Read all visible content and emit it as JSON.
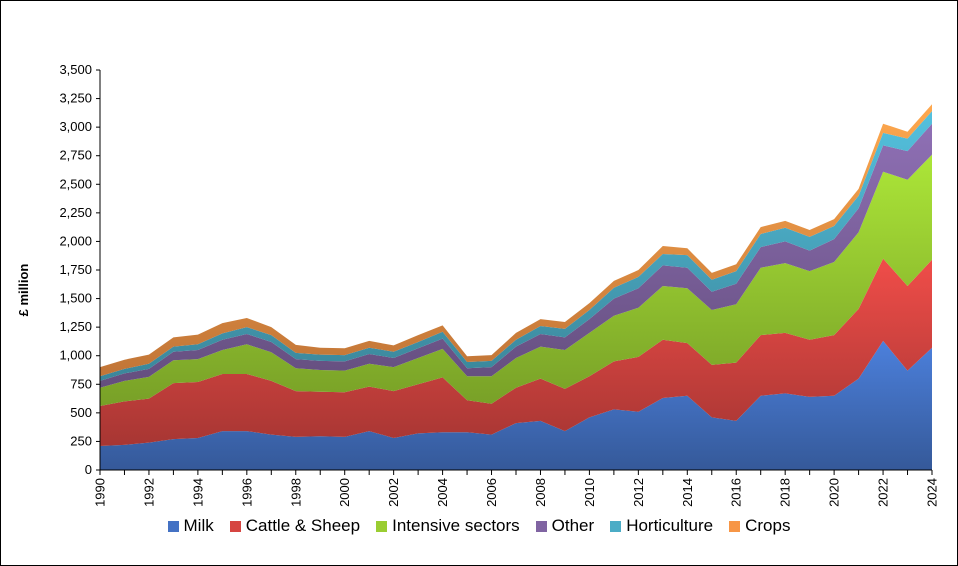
{
  "chart_data": {
    "type": "area",
    "stacked": true,
    "title": "",
    "xlabel": "",
    "ylabel": "£ million",
    "ylim": [
      0,
      3500
    ],
    "yticks": [
      "0",
      "250",
      "500",
      "750",
      "1,000",
      "1,250",
      "1,500",
      "1,750",
      "2,000",
      "2,250",
      "2,500",
      "2,750",
      "3,000",
      "3,250",
      "3,500"
    ],
    "ytick_values": [
      0,
      250,
      500,
      750,
      1000,
      1250,
      1500,
      1750,
      2000,
      2250,
      2500,
      2750,
      3000,
      3250,
      3500
    ],
    "xticks": [
      "1990",
      "1992",
      "1994",
      "1996",
      "1998",
      "2000",
      "2002",
      "2004",
      "2006",
      "2008",
      "2010",
      "2012",
      "2014",
      "2016",
      "2018",
      "2020",
      "2022",
      "2024"
    ],
    "x": [
      1990,
      1991,
      1992,
      1993,
      1994,
      1995,
      1996,
      1997,
      1998,
      1999,
      2000,
      2001,
      2002,
      2003,
      2004,
      2005,
      2006,
      2007,
      2008,
      2009,
      2010,
      2011,
      2012,
      2013,
      2014,
      2015,
      2016,
      2017,
      2018,
      2019,
      2020,
      2021,
      2022,
      2023,
      2024
    ],
    "legend_position": "bottom",
    "grid": false,
    "series": [
      {
        "name": "Milk",
        "color": "#4472C4",
        "values": [
          210,
          220,
          240,
          270,
          280,
          340,
          340,
          310,
          290,
          295,
          290,
          340,
          280,
          320,
          330,
          330,
          310,
          410,
          430,
          340,
          460,
          530,
          510,
          630,
          650,
          460,
          430,
          650,
          670,
          640,
          650,
          800,
          1130,
          870,
          1070
        ]
      },
      {
        "name": "Cattle & Sheep",
        "color": "#D64541",
        "values": [
          350,
          380,
          385,
          490,
          490,
          500,
          500,
          470,
          400,
          390,
          390,
          390,
          410,
          430,
          480,
          280,
          270,
          310,
          370,
          370,
          360,
          420,
          480,
          510,
          460,
          460,
          510,
          530,
          530,
          500,
          530,
          610,
          720,
          740,
          770
        ]
      },
      {
        "name": "Intensive sectors",
        "color": "#9ACD32",
        "values": [
          160,
          180,
          190,
          200,
          200,
          210,
          260,
          250,
          200,
          190,
          190,
          200,
          210,
          230,
          250,
          210,
          240,
          260,
          280,
          340,
          380,
          400,
          430,
          470,
          480,
          480,
          510,
          590,
          610,
          600,
          640,
          670,
          760,
          930,
          920
        ]
      },
      {
        "name": "Other",
        "color": "#8064A2",
        "values": [
          60,
          65,
          70,
          75,
          80,
          90,
          90,
          90,
          80,
          80,
          80,
          85,
          80,
          85,
          90,
          70,
          80,
          100,
          110,
          110,
          120,
          150,
          170,
          180,
          180,
          160,
          180,
          180,
          190,
          180,
          200,
          210,
          230,
          250,
          270
        ]
      },
      {
        "name": "Horticulture",
        "color": "#4BACC6",
        "values": [
          40,
          40,
          45,
          45,
          50,
          55,
          60,
          60,
          55,
          55,
          55,
          55,
          55,
          55,
          60,
          55,
          55,
          60,
          70,
          75,
          80,
          95,
          100,
          100,
          110,
          105,
          110,
          115,
          120,
          120,
          115,
          110,
          110,
          110,
          110
        ]
      },
      {
        "name": "Crops",
        "color": "#F79646",
        "values": [
          80,
          80,
          80,
          80,
          85,
          90,
          80,
          70,
          70,
          60,
          60,
          60,
          55,
          60,
          55,
          50,
          50,
          60,
          60,
          60,
          60,
          60,
          60,
          70,
          60,
          60,
          60,
          60,
          60,
          60,
          60,
          60,
          80,
          60,
          60
        ]
      }
    ]
  }
}
